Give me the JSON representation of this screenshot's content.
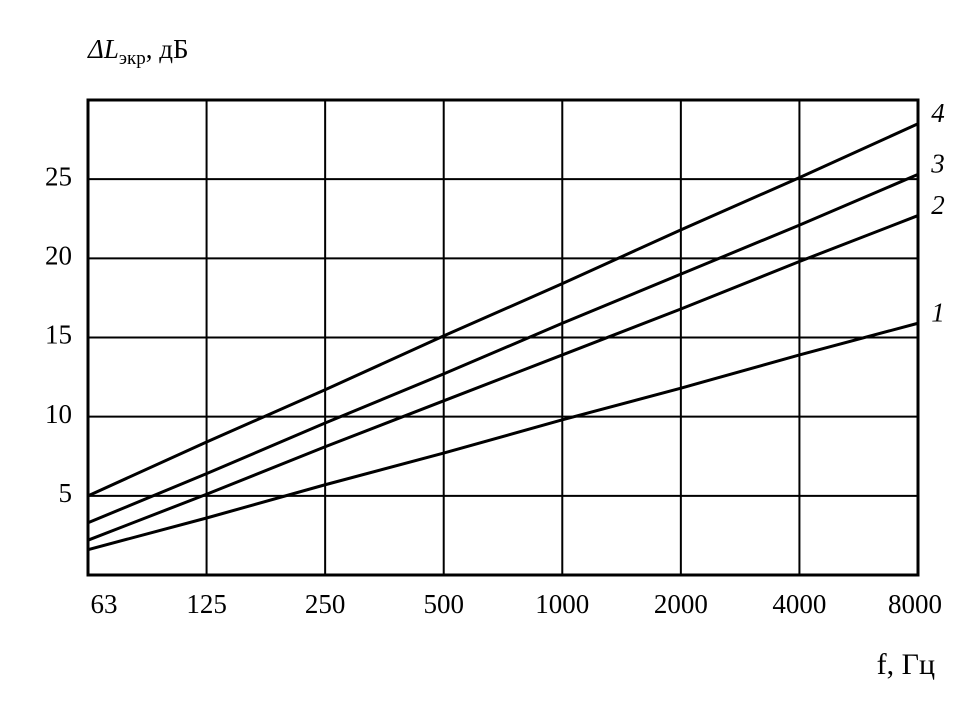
{
  "chart_data": {
    "type": "line",
    "y_label": "ΔL",
    "y_label_sub": "экр",
    "y_label_unit": ", дБ",
    "x_label": "f, Гц",
    "categories": [
      "63",
      "125",
      "250",
      "500",
      "1000",
      "2000",
      "4000",
      "8000"
    ],
    "series": [
      {
        "name": "1",
        "color": "#000000",
        "values": [
          1.6,
          3.6,
          5.7,
          7.7,
          9.8,
          11.8,
          13.9,
          15.9
        ]
      },
      {
        "name": "2",
        "color": "#000000",
        "values": [
          2.2,
          5.1,
          8.1,
          11.0,
          13.9,
          16.8,
          19.8,
          22.7
        ]
      },
      {
        "name": "3",
        "color": "#000000",
        "values": [
          3.3,
          6.4,
          9.6,
          12.7,
          15.9,
          19.0,
          22.1,
          25.3
        ]
      },
      {
        "name": "4",
        "color": "#000000",
        "values": [
          5.0,
          8.4,
          11.7,
          15.1,
          18.4,
          21.8,
          25.1,
          28.5
        ]
      }
    ],
    "ylim": [
      0,
      30
    ],
    "yticks": [
      5,
      10,
      15,
      20,
      25
    ],
    "grid": true
  }
}
